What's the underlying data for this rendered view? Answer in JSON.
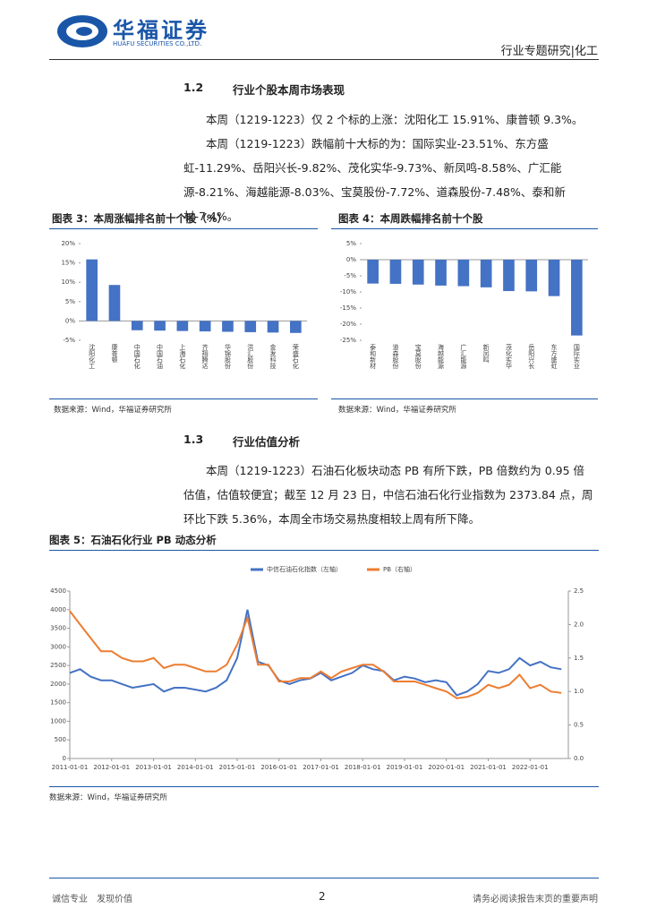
{
  "header": {
    "logo": "华福证券",
    "logo_en": "HUAFU SECURITIES CO.,LTD.",
    "section": "行业专题研究|化工"
  },
  "s12": {
    "num": "1.2",
    "title": "行业个股本周市场表现",
    "p1": "本周（1219-1223）仅 2 个标的上涨：沈阳化工 15.91%、康普顿 9.3%。",
    "p2": "本周（1219-1223）跌幅前十大标的为：国际实业-23.51%、东方盛虹-11.29%、岳阳兴长-9.82%、茂化实华-9.73%、新凤鸣-8.58%、广汇能源-8.21%、海越能源-8.03%、宝莫股份-7.72%、道森股份-7.48%、泰和新材-7.4%。"
  },
  "fig3": {
    "title": "图表 3：本周涨幅排名前十个股（%）",
    "source": "数据来源：Wind，华福证券研究所"
  },
  "fig4": {
    "title": "图表 4：本周跌幅排名前十个股",
    "source": "数据来源：Wind，华福证券研究所"
  },
  "s13": {
    "num": "1.3",
    "title": "行业估值分析",
    "p1": "本周（1219-1223）石油石化板块动态 PB 有所下跌，PB 倍数约为 0.95 倍估值，估值较便宜；截至 12 月 23 日，中信石油石化行业指数为 2373.84 点，周环比下跌 5.36%，本周全市场交易热度相较上周有所下降。"
  },
  "fig5": {
    "title": "图表 5：石油石化行业 PB 动态分析",
    "source": "数据来源：Wind，华福证券研究所"
  },
  "footer": {
    "left": "诚信专业　发现价值",
    "page": "2",
    "right": "请务必阅读报告末页的重要声明"
  },
  "chart_data": [
    {
      "type": "bar",
      "color": "#4472c4",
      "categories": [
        "沈阳化工",
        "康普顿",
        "中国石化",
        "中国石油",
        "上海石化",
        "齐翔腾达",
        "华锦股份",
        "洪汇股份",
        "金发科技",
        "荣盛石化"
      ],
      "values": [
        15.91,
        9.3,
        -2.4,
        -2.5,
        -2.6,
        -2.7,
        -2.8,
        -2.9,
        -3.0,
        -3.1
      ],
      "ylim": [
        -5,
        20
      ],
      "yticks": [
        {
          "value": -5,
          "label": "-5%"
        },
        {
          "value": 0,
          "label": "0%"
        },
        {
          "value": 5,
          "label": "5%"
        },
        {
          "value": 10,
          "label": "10%"
        },
        {
          "value": 15,
          "label": "15%"
        },
        {
          "value": 20,
          "label": "20%"
        }
      ]
    },
    {
      "type": "bar",
      "color": "#4472c4",
      "categories": [
        "泰和新材",
        "道森股份",
        "宝莫股份",
        "海越能源",
        "广汇能源",
        "新凤鸣",
        "茂化实华",
        "岳阳兴长",
        "东方盛虹",
        "国际实业"
      ],
      "values": [
        -7.4,
        -7.48,
        -7.72,
        -8.03,
        -8.21,
        -8.58,
        -9.73,
        -9.82,
        -11.29,
        -23.51
      ],
      "ylim": [
        -25,
        5
      ],
      "yticks": [
        {
          "value": -25,
          "label": "-25%"
        },
        {
          "value": -20,
          "label": "-20%"
        },
        {
          "value": -15,
          "label": "-15%"
        },
        {
          "value": -10,
          "label": "-10%"
        },
        {
          "value": -5,
          "label": "-5%"
        },
        {
          "value": 0,
          "label": "0%"
        },
        {
          "value": 5,
          "label": "5%"
        }
      ]
    },
    {
      "type": "line",
      "xlim": [
        "2011-01-01",
        "2022-12-01"
      ],
      "xticks": [
        "2011-01-01",
        "2012-01-01",
        "2013-01-01",
        "2014-01-01",
        "2015-01-01",
        "2016-01-01",
        "2017-01-01",
        "2018-01-01",
        "2019-01-01",
        "2020-01-01",
        "2021-01-01",
        "2022-01-01"
      ],
      "x": [
        "2011-01-01",
        "2011-04-01",
        "2011-07-01",
        "2011-10-01",
        "2012-01-01",
        "2012-04-01",
        "2012-07-01",
        "2012-10-01",
        "2013-01-01",
        "2013-04-01",
        "2013-07-01",
        "2013-10-01",
        "2014-01-01",
        "2014-04-01",
        "2014-07-01",
        "2014-10-01",
        "2015-01-01",
        "2015-04-01",
        "2015-07-01",
        "2015-10-01",
        "2016-01-01",
        "2016-04-01",
        "2016-07-01",
        "2016-10-01",
        "2017-01-01",
        "2017-04-01",
        "2017-07-01",
        "2017-10-01",
        "2018-01-01",
        "2018-04-01",
        "2018-07-01",
        "2018-10-01",
        "2019-01-01",
        "2019-04-01",
        "2019-07-01",
        "2019-10-01",
        "2020-01-01",
        "2020-04-01",
        "2020-07-01",
        "2020-10-01",
        "2021-01-01",
        "2021-04-01",
        "2021-07-01",
        "2021-10-01",
        "2022-01-01",
        "2022-04-01",
        "2022-07-01",
        "2022-10-01"
      ],
      "ylim": [
        0,
        4500
      ],
      "yticks": [
        0,
        500,
        1000,
        1500,
        2000,
        2500,
        3000,
        3500,
        4000,
        4500
      ],
      "y2lim": [
        0,
        2.5
      ],
      "y2ticks": [
        {
          "value": 0,
          "label": "0.0"
        },
        0.5,
        {
          "value": 1,
          "label": "1.0"
        },
        1.5,
        {
          "value": 2,
          "label": "2.0"
        },
        2.5
      ],
      "series": [
        {
          "name": "中信石油石化指数（左轴）",
          "color": "#4472c4",
          "values": [
            2300,
            2400,
            2200,
            2100,
            2100,
            2000,
            1900,
            1950,
            2000,
            1800,
            1900,
            1900,
            1850,
            1800,
            1900,
            2100,
            2700,
            4000,
            2600,
            2500,
            2100,
            2000,
            2100,
            2150,
            2300,
            2100,
            2200,
            2300,
            2500,
            2400,
            2350,
            2100,
            2200,
            2150,
            2050,
            2100,
            2050,
            1700,
            1800,
            2000,
            2350,
            2300,
            2400,
            2700,
            2500,
            2600,
            2450,
            2400
          ]
        },
        {
          "name": "PB（右轴）",
          "color": "#ed7d31",
          "axis": "y2",
          "values": [
            2.2,
            2.0,
            1.8,
            1.6,
            1.6,
            1.5,
            1.45,
            1.45,
            1.5,
            1.35,
            1.4,
            1.4,
            1.35,
            1.3,
            1.3,
            1.4,
            1.7,
            2.1,
            1.4,
            1.4,
            1.15,
            1.15,
            1.2,
            1.2,
            1.3,
            1.2,
            1.3,
            1.35,
            1.4,
            1.4,
            1.3,
            1.15,
            1.15,
            1.15,
            1.1,
            1.05,
            1.0,
            0.9,
            0.92,
            0.98,
            1.1,
            1.05,
            1.1,
            1.25,
            1.05,
            1.1,
            1.0,
            0.98
          ]
        }
      ]
    }
  ]
}
